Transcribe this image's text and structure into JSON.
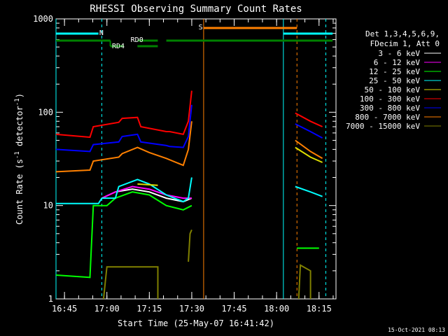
{
  "chart_data": {
    "type": "line",
    "title": "RHESSI Observing Summary Count Rates",
    "xlabel": "Start Time (25-May-07 16:41:42)",
    "ylabel_main": "Count Rate (s",
    "ylabel_sup1": "-1",
    "ylabel_mid": " detector",
    "ylabel_sup2": "-1",
    "ylabel_end": ")",
    "timestamp": "15-Oct-2021 08:13",
    "y_scale": "log",
    "ylim": [
      1,
      1000
    ],
    "xlim_minutes": [
      16.7,
      18.35
    ],
    "x_tick_labels": [
      "16:45",
      "17:00",
      "17:15",
      "17:30",
      "17:45",
      "18:00",
      "18:15"
    ],
    "x_tick_values": [
      16.75,
      17.0,
      17.25,
      17.5,
      17.75,
      18.0,
      18.25
    ],
    "y_tick_labels": [
      "1",
      "10",
      "100",
      "1000"
    ],
    "y_tick_values": [
      1,
      10,
      100,
      1000
    ],
    "legend_header_1": "Det 1,3,4,5,6,9,",
    "legend_header_2": "FDecim 1, Att 0",
    "legend_placement": "right",
    "series": [
      {
        "name": "3 - 6 keV",
        "color": "#ffffff",
        "segments": [
          [
            [
              16.97,
              12
            ],
            [
              17.05,
              14
            ],
            [
              17.15,
              15
            ],
            [
              17.25,
              14
            ],
            [
              17.35,
              12
            ],
            [
              17.45,
              11
            ],
            [
              17.5,
              12
            ]
          ]
        ]
      },
      {
        "name": "6 - 12 keV",
        "color": "#ff00ff",
        "segments": [
          [
            [
              16.97,
              12
            ],
            [
              17.05,
              14
            ],
            [
              17.15,
              16
            ],
            [
              17.25,
              15
            ],
            [
              17.35,
              13
            ],
            [
              17.45,
              12
            ],
            [
              17.5,
              12
            ]
          ]
        ]
      },
      {
        "name": "12 - 25 keV",
        "color": "#00ff00",
        "segments": [
          [
            [
              16.7,
              1.8
            ],
            [
              16.9,
              1.7
            ],
            [
              16.92,
              10
            ],
            [
              17.0,
              10
            ],
            [
              17.05,
              12
            ],
            [
              17.15,
              14
            ],
            [
              17.25,
              13
            ],
            [
              17.35,
              10
            ],
            [
              17.45,
              9
            ],
            [
              17.5,
              10
            ]
          ],
          [
            [
              18.12,
              3.5
            ],
            [
              18.18,
              3.5
            ],
            [
              18.25,
              3.5
            ]
          ]
        ]
      },
      {
        "name": "25 - 50 keV",
        "color": "#00ffff",
        "segments": [
          [
            [
              16.7,
              10.5
            ],
            [
              16.95,
              10.5
            ],
            [
              16.97,
              12
            ],
            [
              17.05,
              12
            ],
            [
              17.07,
              16
            ],
            [
              17.18,
              19
            ],
            [
              17.25,
              17
            ],
            [
              17.35,
              13
            ],
            [
              17.45,
              11
            ],
            [
              17.48,
              12
            ],
            [
              17.5,
              20
            ]
          ],
          [
            [
              18.11,
              16
            ],
            [
              18.2,
              14
            ],
            [
              18.27,
              12.5
            ]
          ]
        ]
      },
      {
        "name": "50 - 100 keV",
        "color": "#dddd00",
        "segments": [
          [
            [
              17.18,
              17
            ],
            [
              17.3,
              16.5
            ]
          ],
          [
            [
              18.11,
              42
            ],
            [
              18.2,
              33
            ],
            [
              18.27,
              29
            ]
          ]
        ]
      },
      {
        "name": "100 - 300 keV",
        "color": "#ff0000",
        "segments": [
          [
            [
              16.7,
              58
            ],
            [
              16.9,
              54
            ],
            [
              16.92,
              70
            ],
            [
              17.07,
              78
            ],
            [
              17.09,
              86
            ],
            [
              17.18,
              88
            ],
            [
              17.2,
              70
            ],
            [
              17.35,
              62
            ],
            [
              17.37,
              62
            ],
            [
              17.45,
              58
            ],
            [
              17.48,
              80
            ],
            [
              17.5,
              170
            ]
          ],
          [
            [
              18.11,
              98
            ],
            [
              18.2,
              80
            ],
            [
              18.27,
              70
            ]
          ]
        ]
      },
      {
        "name": "300 - 800 keV",
        "color": "#0000ff",
        "segments": [
          [
            [
              16.7,
              40
            ],
            [
              16.9,
              38
            ],
            [
              16.92,
              45
            ],
            [
              17.07,
              48
            ],
            [
              17.09,
              55
            ],
            [
              17.18,
              58
            ],
            [
              17.2,
              48
            ],
            [
              17.35,
              44
            ],
            [
              17.37,
              43
            ],
            [
              17.45,
              42
            ],
            [
              17.48,
              55
            ],
            [
              17.5,
              120
            ]
          ],
          [
            [
              18.11,
              75
            ],
            [
              18.2,
              62
            ],
            [
              18.27,
              53
            ]
          ]
        ]
      },
      {
        "name": "800 - 7000 keV",
        "color": "#ff8000",
        "segments": [
          [
            [
              16.7,
              23
            ],
            [
              16.9,
              24
            ],
            [
              16.92,
              30
            ],
            [
              17.07,
              33
            ],
            [
              17.09,
              36
            ],
            [
              17.18,
              42
            ],
            [
              17.25,
              37
            ],
            [
              17.35,
              32
            ],
            [
              17.45,
              27
            ],
            [
              17.48,
              40
            ],
            [
              17.5,
              80
            ]
          ],
          [
            [
              18.11,
              50
            ],
            [
              18.2,
              38
            ],
            [
              18.27,
              32
            ]
          ]
        ]
      },
      {
        "name": "7000 - 15000 keV",
        "color": "#808000",
        "segments": [
          [
            [
              16.98,
              1.0
            ],
            [
              17.0,
              2.2
            ],
            [
              17.3,
              2.2
            ],
            [
              17.3,
              1.0
            ]
          ],
          [
            [
              17.48,
              2.5
            ],
            [
              17.49,
              5
            ],
            [
              17.5,
              5.5
            ]
          ],
          [
            [
              18.13,
              1.0
            ],
            [
              18.14,
              2.3
            ],
            [
              18.2,
              2.0
            ],
            [
              18.2,
              1.0
            ]
          ]
        ]
      }
    ],
    "annotations": {
      "night_label": "N",
      "saa_label": "S",
      "rd0_label": "RD0",
      "rd4_label": "RD4"
    }
  }
}
